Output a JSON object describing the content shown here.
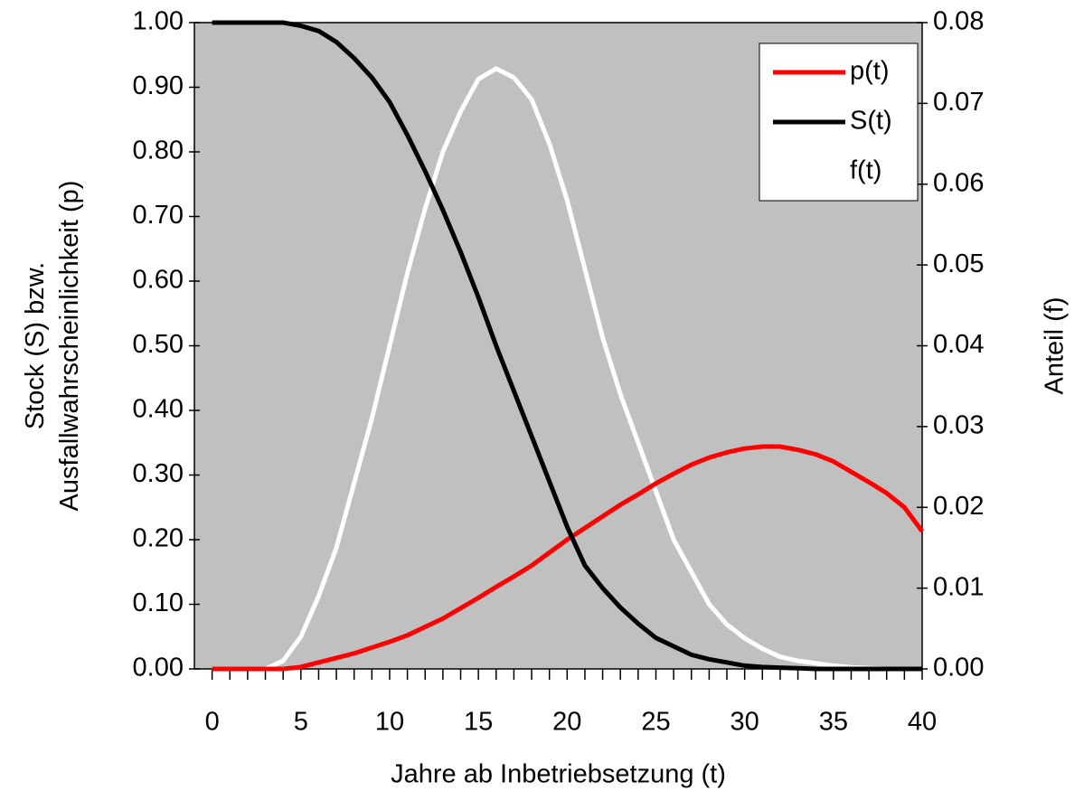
{
  "chart_data": {
    "type": "line",
    "y_label": [
      "Stock (S) bzw.",
      "Ausfallwahrscheinlichkeit (p)"
    ],
    "y2_label": "Anteil (f)",
    "x_label": "Jahre ab Inbetriebsetzung (t)",
    "x": [
      0,
      1,
      2,
      3,
      4,
      5,
      6,
      7,
      8,
      9,
      10,
      11,
      12,
      13,
      14,
      15,
      16,
      17,
      18,
      19,
      20,
      21,
      22,
      23,
      24,
      25,
      26,
      27,
      28,
      29,
      30,
      31,
      32,
      33,
      34,
      35,
      36,
      37,
      38,
      39,
      40
    ],
    "xlim": [
      -1,
      40
    ],
    "xticks": [
      0,
      5,
      10,
      15,
      20,
      25,
      30,
      35,
      40
    ],
    "ylim": [
      0,
      1
    ],
    "yticks": [
      {
        "value": 0,
        "label": "0.00"
      },
      {
        "value": 0.1,
        "label": "0.10"
      },
      {
        "value": 0.2,
        "label": "0.20"
      },
      {
        "value": 0.3,
        "label": "0.30"
      },
      {
        "value": 0.4,
        "label": "0.40"
      },
      {
        "value": 0.5,
        "label": "0.50"
      },
      {
        "value": 0.6,
        "label": "0.60"
      },
      {
        "value": 0.7,
        "label": "0.70"
      },
      {
        "value": 0.8,
        "label": "0.80"
      },
      {
        "value": 0.9,
        "label": "0.90"
      },
      {
        "value": 1,
        "label": "1.00"
      }
    ],
    "y2lim": [
      0,
      0.08
    ],
    "y2ticks": [
      {
        "value": 0,
        "label": "0.00"
      },
      {
        "value": 0.01,
        "label": "0.01"
      },
      {
        "value": 0.02,
        "label": "0.02"
      },
      {
        "value": 0.03,
        "label": "0.03"
      },
      {
        "value": 0.04,
        "label": "0.04"
      },
      {
        "value": 0.05,
        "label": "0.05"
      },
      {
        "value": 0.06,
        "label": "0.06"
      },
      {
        "value": 0.07,
        "label": "0.07"
      },
      {
        "value": 0.08,
        "label": "0.08"
      }
    ],
    "legend": "upper right",
    "plot_background": "#c0c0c0",
    "series": [
      {
        "name": "p(t)",
        "color": "#ff0000",
        "values": [
          0,
          0,
          0,
          0,
          0,
          0.003,
          0.01,
          0.017,
          0.024,
          0.033,
          0.042,
          0.052,
          0.065,
          0.078,
          0.094,
          0.11,
          0.127,
          0.143,
          0.16,
          0.18,
          0.2,
          0.218,
          0.236,
          0.254,
          0.27,
          0.287,
          0.302,
          0.316,
          0.327,
          0.335,
          0.341,
          0.344,
          0.344,
          0.339,
          0.332,
          0.321,
          0.305,
          0.289,
          0.272,
          0.25,
          0.213
        ]
      },
      {
        "name": "S(t)",
        "color": "#000000",
        "values": [
          1,
          1,
          1,
          1,
          1,
          0.995,
          0.987,
          0.97,
          0.945,
          0.915,
          0.877,
          0.826,
          0.77,
          0.71,
          0.645,
          0.575,
          0.5,
          0.43,
          0.36,
          0.29,
          0.22,
          0.16,
          0.125,
          0.095,
          0.07,
          0.048,
          0.035,
          0.022,
          0.015,
          0.01,
          0.005,
          0.003,
          0.002,
          0.001,
          0,
          0,
          0,
          0,
          0,
          0,
          0
        ]
      },
      {
        "name": "f(t)",
        "color": "#ffffff",
        "axis": "y2",
        "values": [
          0,
          0,
          0,
          0,
          0.001,
          0.004,
          0.009,
          0.015,
          0.023,
          0.031,
          0.04,
          0.049,
          0.057,
          0.064,
          0.069,
          0.073,
          0.0743,
          0.0732,
          0.0705,
          0.065,
          0.058,
          0.0495,
          0.041,
          0.034,
          0.028,
          0.022,
          0.016,
          0.012,
          0.008,
          0.0055,
          0.0038,
          0.0025,
          0.0015,
          0.001,
          0.0007,
          0.0004,
          0.0002,
          0.0001,
          0,
          0,
          0
        ]
      }
    ]
  }
}
